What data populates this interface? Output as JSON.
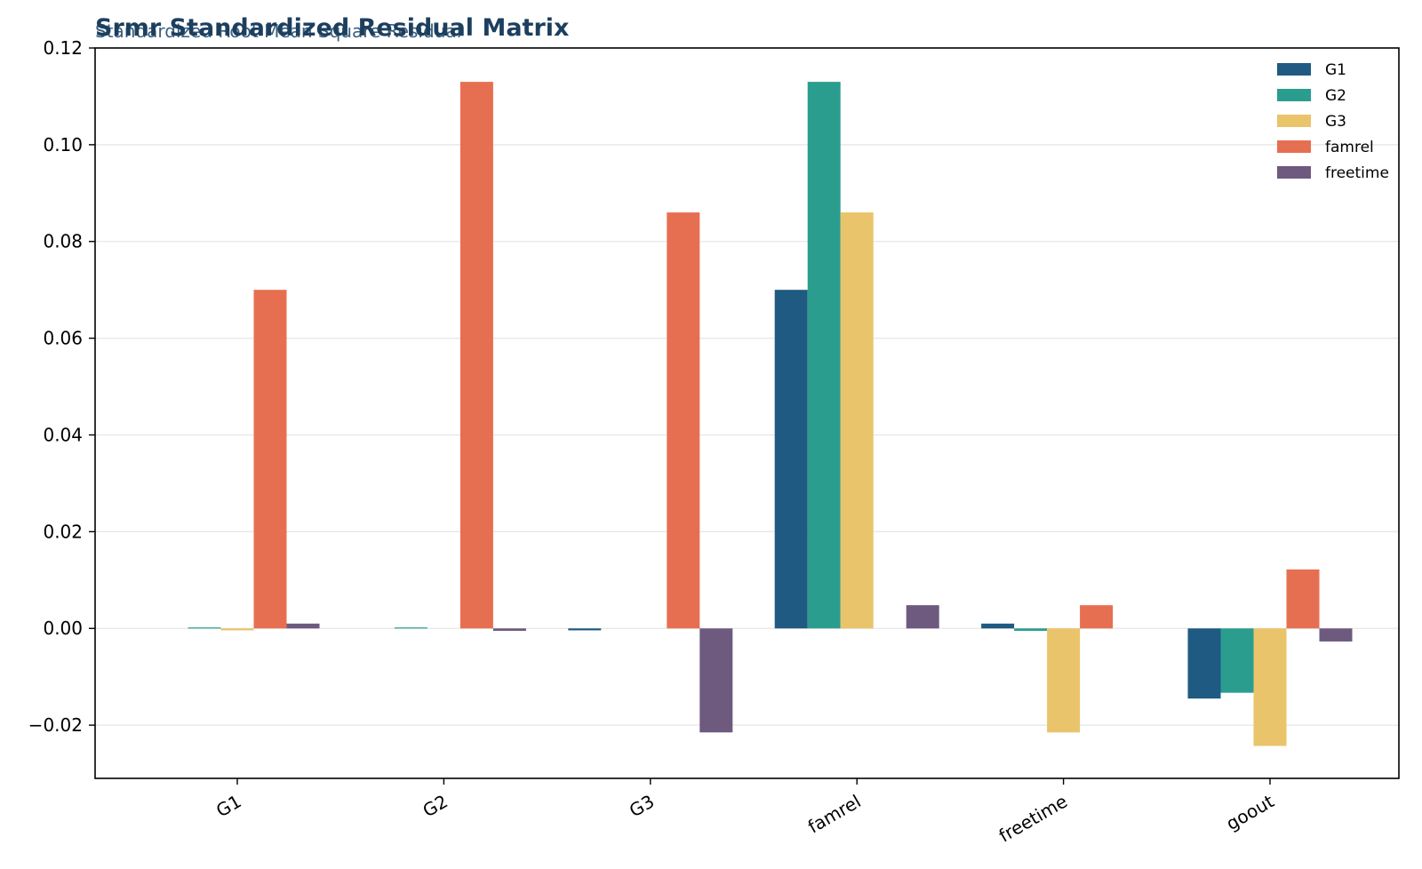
{
  "chart_data": {
    "type": "bar",
    "title": "Srmr Standardized Residual Matrix",
    "subtitle": "Standardized Root Mean Square Residual",
    "xlabel": "",
    "ylabel": "",
    "categories": [
      "G1",
      "G2",
      "G3",
      "famrel",
      "freetime",
      "goout"
    ],
    "ylim": [
      -0.031,
      0.12
    ],
    "yticks": [
      -0.02,
      0.0,
      0.02,
      0.04,
      0.06,
      0.08,
      0.1,
      0.12
    ],
    "ytick_labels": [
      "−0.02",
      "0.00",
      "0.02",
      "0.04",
      "0.06",
      "0.08",
      "0.10",
      "0.12"
    ],
    "grid": "y",
    "legend_position": "top-right",
    "series": [
      {
        "name": "G1",
        "color": "#1f5a82",
        "values": [
          0.0,
          0.0,
          -0.0004,
          0.07,
          0.001,
          -0.0145
        ]
      },
      {
        "name": "G2",
        "color": "#2a9d8f",
        "values": [
          0.0002,
          0.0002,
          0.0,
          0.113,
          -0.0005,
          -0.0133
        ]
      },
      {
        "name": "G3",
        "color": "#e9c46a",
        "values": [
          -0.0004,
          0.0,
          0.0,
          0.086,
          -0.0215,
          -0.0243
        ]
      },
      {
        "name": "famrel",
        "color": "#e76f51",
        "values": [
          0.07,
          0.113,
          0.086,
          0.0,
          0.0048,
          0.0122
        ]
      },
      {
        "name": "freetime",
        "color": "#6d5a7e",
        "values": [
          0.001,
          -0.0005,
          -0.0215,
          0.0048,
          0.0,
          -0.0027
        ]
      }
    ]
  }
}
